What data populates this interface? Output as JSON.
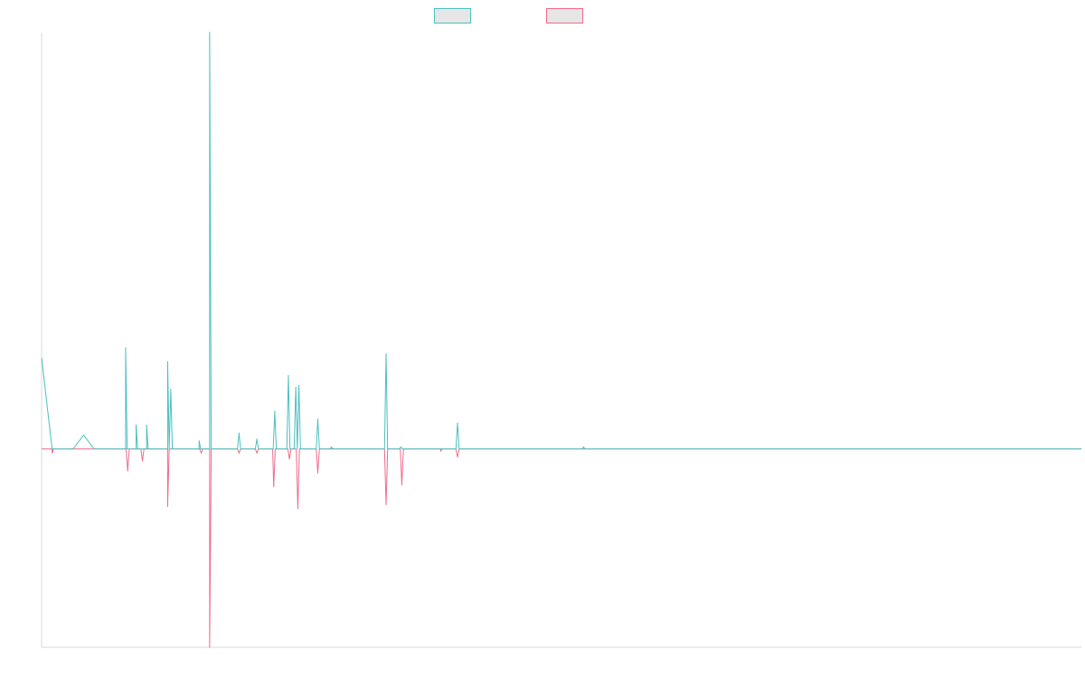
{
  "chart_data": {
    "type": "line",
    "title": "",
    "xlabel": "",
    "ylabel": "",
    "x_count": 100,
    "ylim": [
      -1.0,
      2.1
    ],
    "grid": false,
    "legend_position": "top-center",
    "series": [
      {
        "color": "#4bbfbf",
        "fill": "#e6e6e6",
        "values": [
          0.46,
          0.0,
          0.0,
          0.0,
          0.07,
          0.0,
          0.0,
          0.0,
          0.0,
          0.0,
          0.0,
          0.0,
          0.0,
          0.0,
          0.0,
          0.0,
          0.0,
          0.0,
          0.0,
          0.0,
          0.0,
          0.0,
          0.0,
          0.0,
          0.0,
          0.0,
          0.0,
          0.0,
          0.0,
          0.0,
          0.0,
          0.0,
          0.0,
          0.0,
          0.0,
          0.0,
          0.0,
          0.0,
          0.0,
          0.0,
          0.0,
          0.0,
          0.0,
          0.0,
          0.0,
          0.0,
          0.0,
          0.0,
          0.0,
          0.0,
          0.0,
          0.0,
          0.0,
          0.0,
          0.0,
          0.0,
          0.0,
          0.0,
          0.0,
          0.0,
          0.0,
          0.0,
          0.0,
          0.0,
          0.0,
          0.0,
          0.0,
          0.0,
          0.0,
          0.0,
          0.0,
          0.0,
          0.0,
          0.0,
          0.0,
          0.0,
          0.0,
          0.0,
          0.0,
          0.0,
          0.0,
          0.0,
          0.0,
          0.0,
          0.0,
          0.0,
          0.0,
          0.0,
          0.0,
          0.0,
          0.0,
          0.0,
          0.0,
          0.0,
          0.0,
          0.0,
          0.0,
          0.0,
          0.0,
          0.0
        ],
        "spikes": [
          {
            "i": 8,
            "v": 0.51
          },
          {
            "i": 9,
            "v": 0.12
          },
          {
            "i": 10,
            "v": 0.12
          },
          {
            "i": 12,
            "v": 0.44
          },
          {
            "i": 12.3,
            "v": 0.3
          },
          {
            "i": 15,
            "v": 0.04
          },
          {
            "i": 16,
            "v": 2.1
          },
          {
            "i": 18.8,
            "v": 0.08
          },
          {
            "i": 20.5,
            "v": 0.05
          },
          {
            "i": 22.2,
            "v": 0.19
          },
          {
            "i": 23.5,
            "v": 0.37
          },
          {
            "i": 24.2,
            "v": 0.31
          },
          {
            "i": 24.5,
            "v": 0.32
          },
          {
            "i": 26.3,
            "v": 0.15
          },
          {
            "i": 27.6,
            "v": 0.01
          },
          {
            "i": 32.8,
            "v": 0.48
          },
          {
            "i": 34.2,
            "v": 0.01
          },
          {
            "i": 39.6,
            "v": 0.13
          },
          {
            "i": 51.6,
            "v": 0.01
          }
        ]
      },
      {
        "color": "#f06b8b",
        "fill": "#e6e6e6",
        "spikes": [
          {
            "i": 1,
            "v": -0.02
          },
          {
            "i": 8.2,
            "v": -0.11
          },
          {
            "i": 9.6,
            "v": -0.06
          },
          {
            "i": 12.0,
            "v": -0.29
          },
          {
            "i": 15.2,
            "v": -0.02
          },
          {
            "i": 16.0,
            "v": -1.0
          },
          {
            "i": 18.8,
            "v": -0.02
          },
          {
            "i": 20.5,
            "v": -0.02
          },
          {
            "i": 22.1,
            "v": -0.19
          },
          {
            "i": 23.6,
            "v": -0.05
          },
          {
            "i": 24.4,
            "v": -0.3
          },
          {
            "i": 26.3,
            "v": -0.12
          },
          {
            "i": 32.8,
            "v": -0.28
          },
          {
            "i": 34.3,
            "v": -0.18
          },
          {
            "i": 38.0,
            "v": -0.01
          },
          {
            "i": 39.6,
            "v": -0.04
          }
        ]
      }
    ]
  }
}
